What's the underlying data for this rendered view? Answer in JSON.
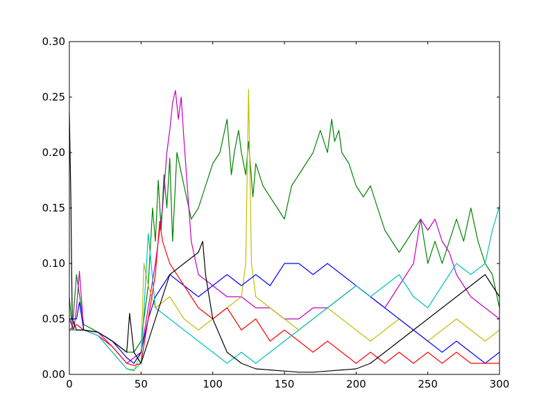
{
  "chart_data": {
    "type": "line",
    "title": "",
    "xlabel": "",
    "ylabel": "",
    "xlim": [
      0,
      300
    ],
    "ylim": [
      0,
      0.3
    ],
    "grid": false,
    "legend": "none",
    "x_ticks": [
      0,
      50,
      100,
      150,
      200,
      250,
      300
    ],
    "x_tick_labels": [
      "0",
      "50",
      "100",
      "150",
      "200",
      "250",
      "300"
    ],
    "y_ticks": [
      0,
      0.05,
      0.1,
      0.15,
      0.2,
      0.25,
      0.3
    ],
    "y_tick_labels": [
      "0.00",
      "0.05",
      "0.10",
      "0.15",
      "0.20",
      "0.25",
      "0.30"
    ],
    "colors": [
      "#0000ff",
      "#008000",
      "#ff0000",
      "#00bfbf",
      "#bf00bf",
      "#bfbf00",
      "#000000"
    ],
    "series_note_count": 7,
    "series": [
      {
        "color": "#008000",
        "x": [
          0,
          2,
          5,
          10,
          20,
          30,
          40,
          45,
          50,
          55,
          58,
          60,
          62,
          64,
          66,
          68,
          70,
          72,
          75,
          80,
          85,
          90,
          95,
          100,
          105,
          110,
          113,
          115,
          118,
          120,
          123,
          125,
          128,
          130,
          135,
          140,
          145,
          150,
          155,
          160,
          165,
          170,
          175,
          180,
          183,
          185,
          188,
          190,
          195,
          200,
          205,
          210,
          215,
          220,
          225,
          230,
          235,
          240,
          245,
          250,
          255,
          260,
          265,
          270,
          275,
          280,
          285,
          290,
          295,
          300
        ],
        "y": [
          0.07,
          0.04,
          0.09,
          0.045,
          0.038,
          0.03,
          0.02,
          0.02,
          0.03,
          0.08,
          0.15,
          0.12,
          0.175,
          0.13,
          0.18,
          0.15,
          0.195,
          0.12,
          0.2,
          0.17,
          0.14,
          0.15,
          0.17,
          0.19,
          0.2,
          0.23,
          0.18,
          0.2,
          0.22,
          0.2,
          0.18,
          0.21,
          0.16,
          0.19,
          0.17,
          0.16,
          0.15,
          0.14,
          0.17,
          0.18,
          0.19,
          0.2,
          0.22,
          0.2,
          0.23,
          0.21,
          0.22,
          0.2,
          0.19,
          0.17,
          0.16,
          0.17,
          0.15,
          0.13,
          0.12,
          0.11,
          0.12,
          0.13,
          0.14,
          0.1,
          0.12,
          0.1,
          0.12,
          0.14,
          0.12,
          0.15,
          0.12,
          0.1,
          0.09,
          0.06
        ]
      },
      {
        "color": "#bf00bf",
        "x": [
          0,
          3,
          5,
          7,
          10,
          20,
          30,
          40,
          50,
          55,
          60,
          62,
          65,
          68,
          70,
          72,
          74,
          76,
          78,
          80,
          85,
          90,
          100,
          110,
          120,
          130,
          140,
          150,
          160,
          170,
          180,
          190,
          200,
          210,
          220,
          230,
          240,
          245,
          250,
          255,
          260,
          265,
          270,
          280,
          290,
          300
        ],
        "y": [
          0.05,
          0.04,
          0.06,
          0.093,
          0.04,
          0.038,
          0.025,
          0.01,
          0.02,
          0.06,
          0.1,
          0.12,
          0.15,
          0.2,
          0.22,
          0.245,
          0.256,
          0.23,
          0.25,
          0.21,
          0.12,
          0.09,
          0.08,
          0.07,
          0.07,
          0.06,
          0.06,
          0.05,
          0.05,
          0.06,
          0.06,
          0.07,
          0.08,
          0.07,
          0.06,
          0.08,
          0.1,
          0.14,
          0.13,
          0.14,
          0.12,
          0.11,
          0.09,
          0.07,
          0.06,
          0.05
        ]
      },
      {
        "color": "#bfbf00",
        "x": [
          0,
          5,
          10,
          20,
          30,
          40,
          45,
          50,
          52,
          55,
          60,
          70,
          80,
          90,
          100,
          110,
          120,
          123,
          125,
          127,
          130,
          140,
          150,
          160,
          170,
          180,
          190,
          200,
          210,
          220,
          230,
          240,
          250,
          260,
          270,
          280,
          290,
          300
        ],
        "y": [
          0.04,
          0.04,
          0.04,
          0.035,
          0.02,
          0.005,
          0.003,
          0.02,
          0.1,
          0.08,
          0.06,
          0.07,
          0.05,
          0.04,
          0.05,
          0.06,
          0.07,
          0.1,
          0.257,
          0.1,
          0.07,
          0.06,
          0.05,
          0.04,
          0.05,
          0.06,
          0.05,
          0.04,
          0.03,
          0.04,
          0.05,
          0.04,
          0.03,
          0.04,
          0.05,
          0.04,
          0.03,
          0.04
        ]
      },
      {
        "color": "#0000ff",
        "x": [
          0,
          5,
          7,
          10,
          20,
          30,
          40,
          45,
          50,
          55,
          60,
          70,
          80,
          90,
          100,
          110,
          120,
          130,
          140,
          150,
          160,
          170,
          180,
          190,
          200,
          210,
          220,
          230,
          240,
          250,
          260,
          270,
          280,
          290,
          300
        ],
        "y": [
          0.05,
          0.05,
          0.065,
          0.04,
          0.038,
          0.03,
          0.015,
          0.01,
          0.02,
          0.05,
          0.07,
          0.09,
          0.08,
          0.07,
          0.08,
          0.09,
          0.08,
          0.09,
          0.08,
          0.1,
          0.1,
          0.09,
          0.1,
          0.09,
          0.08,
          0.07,
          0.06,
          0.05,
          0.04,
          0.03,
          0.02,
          0.03,
          0.02,
          0.01,
          0.02
        ]
      },
      {
        "color": "#ff0000",
        "x": [
          0,
          5,
          10,
          20,
          30,
          40,
          45,
          50,
          55,
          60,
          63,
          65,
          70,
          80,
          90,
          100,
          110,
          120,
          130,
          140,
          150,
          160,
          170,
          180,
          190,
          200,
          210,
          220,
          230,
          240,
          250,
          260,
          270,
          280,
          290,
          300
        ],
        "y": [
          0.04,
          0.045,
          0.04,
          0.035,
          0.025,
          0.01,
          0.008,
          0.01,
          0.05,
          0.09,
          0.138,
          0.12,
          0.1,
          0.08,
          0.06,
          0.05,
          0.06,
          0.04,
          0.05,
          0.03,
          0.04,
          0.03,
          0.02,
          0.03,
          0.02,
          0.01,
          0.02,
          0.01,
          0.02,
          0.01,
          0.02,
          0.01,
          0.02,
          0.01,
          0.01,
          0.01
        ]
      },
      {
        "color": "#00bfbf",
        "x": [
          0,
          5,
          10,
          20,
          30,
          40,
          45,
          50,
          55,
          60,
          70,
          80,
          90,
          100,
          110,
          120,
          130,
          140,
          150,
          160,
          170,
          180,
          190,
          200,
          210,
          220,
          230,
          240,
          250,
          260,
          270,
          280,
          290,
          295,
          300
        ],
        "y": [
          0.04,
          0.04,
          0.04,
          0.035,
          0.02,
          0.005,
          0.004,
          0.01,
          0.127,
          0.06,
          0.05,
          0.04,
          0.03,
          0.02,
          0.01,
          0.02,
          0.01,
          0.02,
          0.03,
          0.04,
          0.05,
          0.06,
          0.07,
          0.08,
          0.07,
          0.08,
          0.09,
          0.07,
          0.06,
          0.08,
          0.1,
          0.09,
          0.1,
          0.13,
          0.152
        ]
      },
      {
        "color": "#000000",
        "x": [
          0,
          1,
          2,
          5,
          10,
          20,
          30,
          40,
          42,
          45,
          50,
          55,
          60,
          65,
          70,
          80,
          90,
          93,
          95,
          100,
          110,
          120,
          130,
          140,
          150,
          160,
          170,
          180,
          190,
          200,
          210,
          220,
          230,
          240,
          250,
          260,
          270,
          280,
          290,
          300
        ],
        "y": [
          0.235,
          0.16,
          0.05,
          0.04,
          0.04,
          0.038,
          0.03,
          0.02,
          0.055,
          0.02,
          0.01,
          0.03,
          0.05,
          0.07,
          0.09,
          0.1,
          0.11,
          0.12,
          0.09,
          0.05,
          0.02,
          0.01,
          0.005,
          0.004,
          0.003,
          0.002,
          0.002,
          0.003,
          0.004,
          0.005,
          0.01,
          0.02,
          0.03,
          0.04,
          0.05,
          0.06,
          0.07,
          0.08,
          0.09,
          0.07
        ]
      }
    ]
  }
}
